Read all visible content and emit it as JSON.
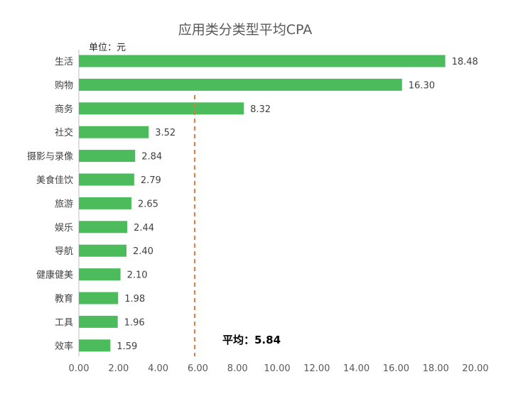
{
  "chart_data": {
    "type": "bar",
    "orientation": "horizontal",
    "title": "应用类分类型平均CPA",
    "unit_label": "单位：元",
    "categories": [
      "生活",
      "购物",
      "商务",
      "社交",
      "摄影与录像",
      "美食佳饮",
      "旅游",
      "娱乐",
      "导航",
      "健康健美",
      "教育",
      "工具",
      "效率"
    ],
    "values": [
      18.48,
      16.3,
      8.32,
      3.52,
      2.84,
      2.79,
      2.65,
      2.44,
      2.4,
      2.1,
      1.98,
      1.96,
      1.59
    ],
    "value_labels": [
      "18.48",
      "16.30",
      "8.32",
      "3.52",
      "2.84",
      "2.79",
      "2.65",
      "2.44",
      "2.40",
      "2.10",
      "1.98",
      "1.96",
      "1.59"
    ],
    "xlim": [
      0,
      20
    ],
    "x_ticks": [
      0,
      2,
      4,
      6,
      8,
      10,
      12,
      14,
      16,
      18,
      20
    ],
    "x_tick_labels": [
      "0.00",
      "2.00",
      "4.00",
      "6.00",
      "8.00",
      "10.00",
      "12.00",
      "14.00",
      "16.00",
      "18.00",
      "20.00"
    ],
    "reference_line": {
      "value": 5.84,
      "label": "平均：5.84",
      "style": "dashed",
      "color": "#E07B39"
    },
    "bar_color": "#4CBB5C",
    "grid": false,
    "legend": "none"
  }
}
